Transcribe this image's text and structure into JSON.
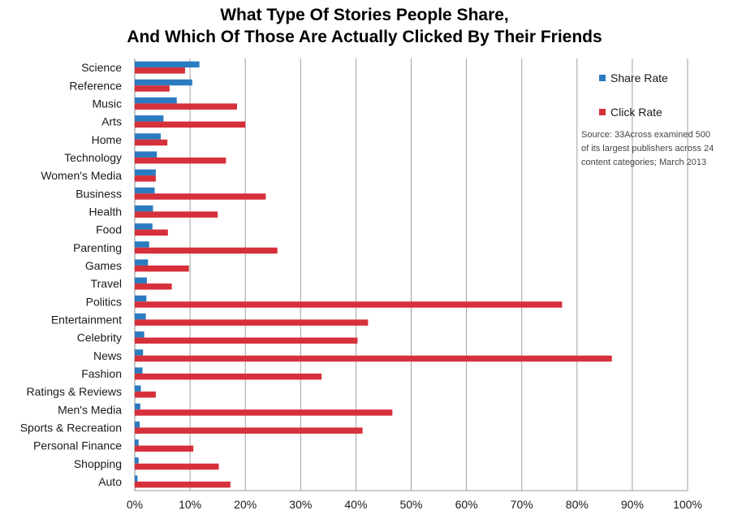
{
  "chart_data": {
    "type": "bar",
    "orientation": "horizontal",
    "title": "What Type Of Stories People Share,",
    "subtitle": "And Which Of Those Are Actually Clicked By Their Friends",
    "categories": [
      "Science",
      "Reference",
      "Music",
      "Arts",
      "Home",
      "Technology",
      "Women's Media",
      "Business",
      "Health",
      "Food",
      "Parenting",
      "Games",
      "Travel",
      "Politics",
      "Entertainment",
      "Celebrity",
      "News",
      "Fashion",
      "Ratings & Reviews",
      "Men's Media",
      "Sports & Recreation",
      "Personal Finance",
      "Shopping",
      "Auto"
    ],
    "series": [
      {
        "name": "Share Rate",
        "color": "#2b7bc0",
        "values": [
          11.7,
          10.4,
          7.6,
          5.2,
          4.7,
          4.0,
          3.8,
          3.6,
          3.3,
          3.2,
          2.6,
          2.4,
          2.2,
          2.1,
          2.0,
          1.7,
          1.5,
          1.4,
          1.1,
          1.0,
          0.9,
          0.7,
          0.7,
          0.5
        ]
      },
      {
        "name": "Click Rate",
        "color": "#d6303a",
        "values": [
          9.1,
          6.3,
          18.5,
          20.0,
          5.9,
          16.5,
          3.8,
          23.7,
          15.0,
          6.0,
          25.8,
          9.8,
          6.7,
          77.3,
          42.2,
          40.3,
          86.3,
          33.8,
          3.8,
          46.6,
          41.2,
          10.6,
          15.2,
          17.3
        ]
      }
    ],
    "xlim": [
      0,
      100
    ],
    "x_ticks": [
      "0%",
      "10%",
      "20%",
      "30%",
      "40%",
      "50%",
      "60%",
      "70%",
      "80%",
      "90%",
      "100%"
    ],
    "grid": "vertical",
    "legend_position": "top-right",
    "annotation": [
      "Source: 33Across examined 500",
      "of its largest publishers across 24",
      "content categories; March 2013"
    ]
  }
}
